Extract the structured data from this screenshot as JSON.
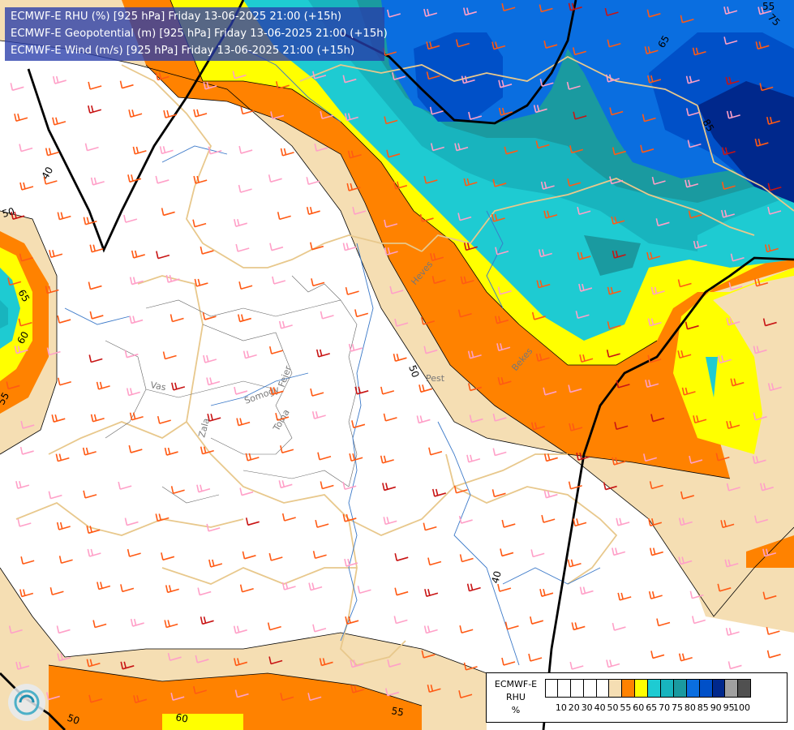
{
  "title_lines": [
    "ECMWF-E RHU (%) [925 hPa] Friday 13-06-2025 21:00 (+15h)",
    "ECMWF-E Geopotential (m) [925 hPa] Friday 13-06-2025 21:00 (+15h)",
    "ECMWF-E Wind (m/s) [925 hPa] Friday 13-06-2025 21:00 (+15h)"
  ],
  "legend": {
    "label_lines": [
      "ECMWF-E",
      "RHU",
      "%"
    ],
    "ticks": [
      "10",
      "20",
      "30",
      "40",
      "50",
      "55",
      "60",
      "65",
      "70",
      "75",
      "80",
      "85",
      "90",
      "95",
      "100"
    ],
    "colors": [
      "#ffffff",
      "#ffffff",
      "#ffffff",
      "#ffffff",
      "#ffffff",
      "#f5deb3",
      "#ff8200",
      "#ffff00",
      "#1ecbd2",
      "#18b4be",
      "#1a9aa0",
      "#0a6ee0",
      "#0050c8",
      "#00288c",
      "#a0a0a0",
      "#505050"
    ]
  },
  "contour_labels": {
    "geopotential": [
      "40",
      "50",
      "40",
      "50",
      "55",
      "65",
      "75",
      "85",
      "65",
      "60",
      "55",
      "50",
      "60",
      "55"
    ]
  },
  "place_labels": [
    "Vas",
    "Zala",
    "Somogy",
    "Fejer",
    "Tolna",
    "Pest",
    "Heves",
    "Bekes"
  ],
  "colors": {
    "rhu_55": "#f5deb3",
    "rhu_60": "#ff8200",
    "rhu_65": "#ffff00",
    "rhu_70": "#1ecbd2",
    "rhu_75": "#18b4be",
    "rhu_80": "#1a9aa0",
    "rhu_85": "#0a6ee0",
    "rhu_90": "#0050c8",
    "rhu_95": "#00288c",
    "wind_barb_orange": "#ff5a14",
    "wind_barb_pink": "#ffa0c8",
    "wind_barb_red": "#c81414",
    "geopotential_line": "#000000",
    "border_line": "#e8c88c"
  }
}
